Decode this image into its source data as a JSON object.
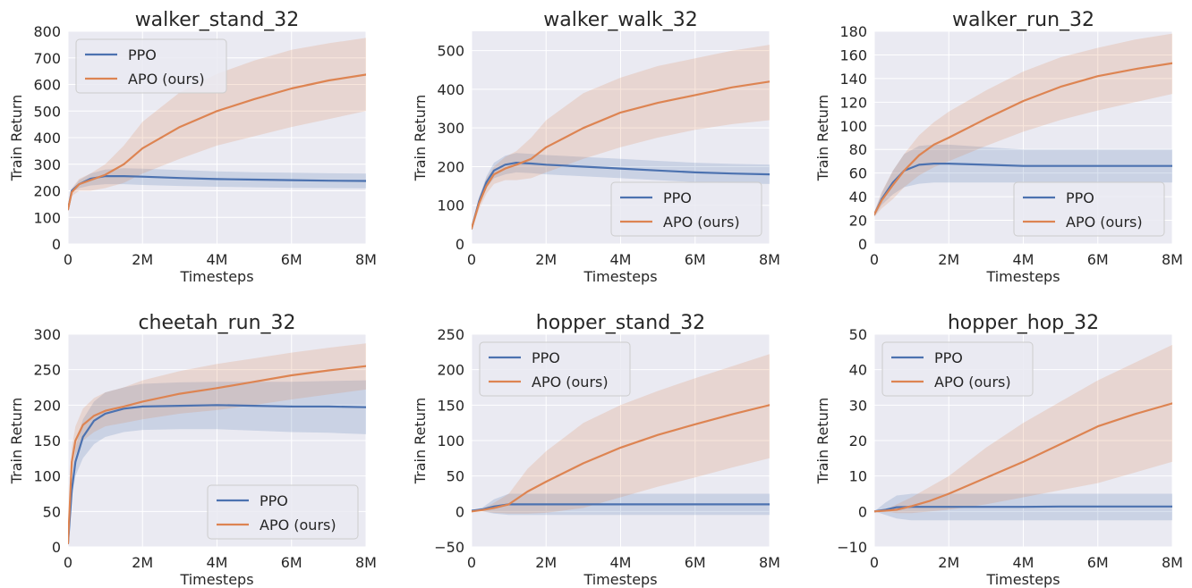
{
  "figure": {
    "colors": {
      "PPO": "#4c72b0",
      "APO (ours)": "#dd8452",
      "plot_bg": "#eaeaf2",
      "grid": "#ffffff"
    }
  },
  "chart_data": [
    {
      "type": "line",
      "title": "walker_stand_32",
      "xlabel": "Timesteps",
      "ylabel": "Train Return",
      "xlim": [
        0,
        8000000
      ],
      "ylim": [
        0,
        800
      ],
      "xticks": [
        0,
        2000000,
        4000000,
        6000000,
        8000000
      ],
      "xtick_labels": [
        "0",
        "2M",
        "4M",
        "6M",
        "8M"
      ],
      "yticks": [
        0,
        100,
        200,
        300,
        400,
        500,
        600,
        700,
        800
      ],
      "ytick_labels": [
        "0",
        "100",
        "200",
        "300",
        "400",
        "500",
        "600",
        "700",
        "800"
      ],
      "legend": "top-left",
      "grid": true,
      "series": [
        {
          "name": "PPO",
          "color": "#4c72b0",
          "x": [
            0,
            100000,
            300000,
            600000,
            1000000,
            1500000,
            2000000,
            3000000,
            4000000,
            5000000,
            6000000,
            7000000,
            8000000
          ],
          "y": [
            130,
            200,
            225,
            245,
            255,
            255,
            253,
            248,
            244,
            242,
            240,
            238,
            237
          ],
          "lower": [
            130,
            195,
            210,
            220,
            225,
            225,
            222,
            218,
            215,
            213,
            211,
            210,
            209
          ],
          "upper": [
            130,
            205,
            240,
            265,
            280,
            285,
            283,
            278,
            273,
            270,
            268,
            266,
            265
          ]
        },
        {
          "name": "APO (ours)",
          "color": "#dd8452",
          "x": [
            0,
            100000,
            300000,
            600000,
            1000000,
            1500000,
            2000000,
            3000000,
            4000000,
            5000000,
            6000000,
            7000000,
            8000000
          ],
          "y": [
            130,
            195,
            225,
            240,
            260,
            300,
            360,
            440,
            500,
            545,
            585,
            615,
            637
          ],
          "lower": [
            130,
            180,
            200,
            200,
            210,
            230,
            265,
            320,
            370,
            405,
            440,
            470,
            500
          ],
          "upper": [
            130,
            210,
            245,
            265,
            300,
            370,
            460,
            570,
            640,
            690,
            730,
            755,
            775
          ]
        }
      ]
    },
    {
      "type": "line",
      "title": "walker_walk_32",
      "xlabel": "Timesteps",
      "ylabel": "Train Return",
      "xlim": [
        0,
        8000000
      ],
      "ylim": [
        0,
        550
      ],
      "xticks": [
        0,
        2000000,
        4000000,
        6000000,
        8000000
      ],
      "xtick_labels": [
        "0",
        "2M",
        "4M",
        "6M",
        "8M"
      ],
      "yticks": [
        0,
        100,
        200,
        300,
        400,
        500
      ],
      "ytick_labels": [
        "0",
        "100",
        "200",
        "300",
        "400",
        "500"
      ],
      "legend": "lower-right",
      "grid": true,
      "series": [
        {
          "name": "PPO",
          "color": "#4c72b0",
          "x": [
            0,
            200000,
            400000,
            600000,
            900000,
            1200000,
            1600000,
            2000000,
            3000000,
            4000000,
            5000000,
            6000000,
            7000000,
            8000000
          ],
          "y": [
            40,
            110,
            160,
            190,
            205,
            210,
            208,
            205,
            200,
            195,
            190,
            185,
            182,
            180
          ],
          "lower": [
            35,
            100,
            145,
            170,
            180,
            185,
            183,
            180,
            175,
            170,
            165,
            160,
            157,
            155
          ],
          "upper": [
            45,
            120,
            175,
            210,
            228,
            235,
            233,
            230,
            225,
            220,
            215,
            210,
            207,
            205
          ]
        },
        {
          "name": "APO (ours)",
          "color": "#dd8452",
          "x": [
            0,
            200000,
            400000,
            600000,
            900000,
            1200000,
            1600000,
            2000000,
            3000000,
            4000000,
            5000000,
            6000000,
            7000000,
            8000000
          ],
          "y": [
            40,
            105,
            150,
            180,
            195,
            205,
            220,
            250,
            300,
            340,
            365,
            385,
            405,
            420
          ],
          "lower": [
            35,
            90,
            130,
            155,
            165,
            165,
            170,
            185,
            220,
            250,
            275,
            295,
            310,
            320
          ],
          "upper": [
            45,
            120,
            170,
            200,
            225,
            240,
            275,
            320,
            390,
            430,
            460,
            480,
            500,
            515
          ]
        }
      ]
    },
    {
      "type": "line",
      "title": "walker_run_32",
      "xlabel": "Timesteps",
      "ylabel": "Train Return",
      "xlim": [
        0,
        8000000
      ],
      "ylim": [
        0,
        180
      ],
      "xticks": [
        0,
        2000000,
        4000000,
        6000000,
        8000000
      ],
      "xtick_labels": [
        "0",
        "2M",
        "4M",
        "6M",
        "8M"
      ],
      "yticks": [
        0,
        20,
        40,
        60,
        80,
        100,
        120,
        140,
        160,
        180
      ],
      "ytick_labels": [
        "0",
        "20",
        "40",
        "60",
        "80",
        "100",
        "120",
        "140",
        "160",
        "180"
      ],
      "legend": "lower-right",
      "grid": true,
      "series": [
        {
          "name": "PPO",
          "color": "#4c72b0",
          "x": [
            0,
            200000,
            500000,
            800000,
            1200000,
            1600000,
            2000000,
            3000000,
            4000000,
            5000000,
            6000000,
            7000000,
            8000000
          ],
          "y": [
            25,
            38,
            52,
            62,
            67,
            68,
            68,
            67,
            66,
            66,
            66,
            66,
            66
          ],
          "lower": [
            23,
            33,
            42,
            48,
            51,
            52,
            52,
            52,
            52,
            52,
            52,
            52,
            52
          ],
          "upper": [
            27,
            43,
            62,
            76,
            83,
            84,
            84,
            82,
            80,
            80,
            80,
            80,
            80
          ]
        },
        {
          "name": "APO (ours)",
          "color": "#dd8452",
          "x": [
            0,
            200000,
            500000,
            800000,
            1200000,
            1600000,
            2000000,
            3000000,
            4000000,
            5000000,
            6000000,
            7000000,
            8000000
          ],
          "y": [
            25,
            37,
            50,
            62,
            75,
            84,
            90,
            106,
            121,
            133,
            142,
            148,
            153
          ],
          "lower": [
            23,
            30,
            38,
            48,
            58,
            65,
            70,
            83,
            95,
            105,
            113,
            120,
            127
          ],
          "upper": [
            27,
            44,
            62,
            76,
            92,
            103,
            112,
            130,
            146,
            158,
            166,
            173,
            178
          ]
        }
      ]
    },
    {
      "type": "line",
      "title": "cheetah_run_32",
      "xlabel": "Timesteps",
      "ylabel": "Train Return",
      "xlim": [
        0,
        8000000
      ],
      "ylim": [
        0,
        300
      ],
      "xticks": [
        0,
        2000000,
        4000000,
        6000000,
        8000000
      ],
      "xtick_labels": [
        "0",
        "2M",
        "4M",
        "6M",
        "8M"
      ],
      "yticks": [
        0,
        50,
        100,
        150,
        200,
        250,
        300
      ],
      "ytick_labels": [
        "0",
        "50",
        "100",
        "150",
        "200",
        "250",
        "300"
      ],
      "legend": "lower-right",
      "grid": true,
      "series": [
        {
          "name": "PPO",
          "color": "#4c72b0",
          "x": [
            0,
            100000,
            200000,
            400000,
            700000,
            1000000,
            1500000,
            2000000,
            3000000,
            4000000,
            5000000,
            6000000,
            7000000,
            8000000
          ],
          "y": [
            5,
            80,
            120,
            155,
            178,
            188,
            195,
            198,
            199,
            200,
            199,
            198,
            198,
            197
          ],
          "lower": [
            5,
            70,
            100,
            125,
            145,
            155,
            162,
            165,
            166,
            166,
            164,
            162,
            161,
            159
          ],
          "upper": [
            5,
            90,
            140,
            180,
            205,
            218,
            225,
            230,
            232,
            233,
            233,
            233,
            234,
            235
          ]
        },
        {
          "name": "APO (ours)",
          "color": "#dd8452",
          "x": [
            0,
            100000,
            200000,
            400000,
            700000,
            1000000,
            1500000,
            2000000,
            3000000,
            4000000,
            5000000,
            6000000,
            7000000,
            8000000
          ],
          "y": [
            5,
            120,
            150,
            172,
            185,
            192,
            198,
            205,
            216,
            224,
            233,
            242,
            249,
            255
          ],
          "lower": [
            5,
            100,
            130,
            150,
            162,
            170,
            175,
            180,
            188,
            193,
            200,
            208,
            215,
            222
          ],
          "upper": [
            5,
            140,
            170,
            195,
            210,
            218,
            225,
            235,
            248,
            258,
            266,
            274,
            281,
            287
          ]
        }
      ]
    },
    {
      "type": "line",
      "title": "hopper_stand_32",
      "xlabel": "Timesteps",
      "ylabel": "Train Return",
      "xlim": [
        0,
        8000000
      ],
      "ylim": [
        -50,
        250
      ],
      "xticks": [
        0,
        2000000,
        4000000,
        6000000,
        8000000
      ],
      "xtick_labels": [
        "0",
        "2M",
        "4M",
        "6M",
        "8M"
      ],
      "yticks": [
        -50,
        0,
        50,
        100,
        150,
        200,
        250
      ],
      "ytick_labels": [
        "−50",
        "0",
        "50",
        "100",
        "150",
        "200",
        "250"
      ],
      "legend": "top-left",
      "grid": true,
      "series": [
        {
          "name": "PPO",
          "color": "#4c72b0",
          "x": [
            0,
            300000,
            600000,
            1000000,
            1500000,
            2000000,
            3000000,
            4000000,
            5000000,
            6000000,
            7000000,
            8000000
          ],
          "y": [
            1,
            3,
            7,
            10,
            10,
            10,
            10,
            10,
            10,
            10,
            10,
            10
          ],
          "lower": [
            1,
            0,
            -3,
            -5,
            -5,
            -5,
            -5,
            -5,
            -5,
            -5,
            -5,
            -5
          ],
          "upper": [
            1,
            6,
            17,
            25,
            25,
            25,
            25,
            25,
            25,
            25,
            25,
            25
          ]
        },
        {
          "name": "APO (ours)",
          "color": "#dd8452",
          "x": [
            0,
            300000,
            600000,
            1000000,
            1500000,
            2000000,
            3000000,
            4000000,
            5000000,
            6000000,
            7000000,
            8000000
          ],
          "y": [
            0,
            2,
            5,
            10,
            28,
            42,
            68,
            90,
            108,
            123,
            137,
            150
          ],
          "lower": [
            0,
            0,
            -2,
            -3,
            -3,
            -2,
            5,
            20,
            35,
            48,
            62,
            75
          ],
          "upper": [
            0,
            4,
            12,
            25,
            60,
            85,
            125,
            150,
            170,
            188,
            205,
            222
          ]
        }
      ]
    },
    {
      "type": "line",
      "title": "hopper_hop_32",
      "xlabel": "Timesteps",
      "ylabel": "Train Return",
      "xlim": [
        0,
        8000000
      ],
      "ylim": [
        -10,
        50
      ],
      "xticks": [
        0,
        2000000,
        4000000,
        6000000,
        8000000
      ],
      "xtick_labels": [
        "0",
        "2M",
        "4M",
        "6M",
        "8M"
      ],
      "yticks": [
        -10,
        0,
        10,
        20,
        30,
        40,
        50
      ],
      "ytick_labels": [
        "−10",
        "0",
        "10",
        "20",
        "30",
        "40",
        "50"
      ],
      "legend": "top-left",
      "grid": true,
      "series": [
        {
          "name": "PPO",
          "color": "#4c72b0",
          "x": [
            0,
            300000,
            600000,
            1000000,
            1500000,
            2000000,
            3000000,
            4000000,
            5000000,
            6000000,
            7000000,
            8000000
          ],
          "y": [
            0,
            0.5,
            1.2,
            1.3,
            1.3,
            1.3,
            1.3,
            1.3,
            1.4,
            1.4,
            1.4,
            1.4
          ],
          "lower": [
            0,
            -1,
            -2,
            -2.5,
            -2.5,
            -2.5,
            -2.5,
            -2.5,
            -2.5,
            -2.5,
            -2.5,
            -2.5
          ],
          "upper": [
            0,
            2.5,
            4.5,
            5,
            5,
            5,
            5,
            5,
            5,
            5,
            5,
            5
          ]
        },
        {
          "name": "APO (ours)",
          "color": "#dd8452",
          "x": [
            0,
            300000,
            600000,
            1000000,
            1500000,
            2000000,
            3000000,
            4000000,
            5000000,
            6000000,
            7000000,
            8000000
          ],
          "y": [
            0,
            0.2,
            0.5,
            1.5,
            3,
            5,
            9.5,
            14,
            19,
            24,
            27.5,
            30.5
          ],
          "lower": [
            0,
            0,
            -0.5,
            -0.5,
            0,
            0.5,
            2,
            4,
            6,
            8,
            11,
            14
          ],
          "upper": [
            0,
            0.5,
            2,
            4,
            7,
            10,
            18,
            25,
            31,
            37,
            42,
            47
          ]
        }
      ]
    }
  ]
}
